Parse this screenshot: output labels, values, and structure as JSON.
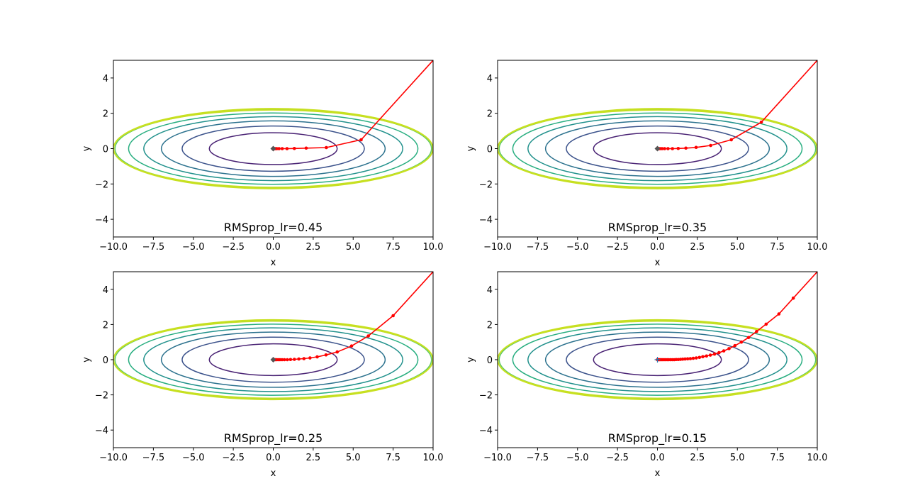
{
  "chart_data": [
    {
      "type": "line",
      "title": "RMSprop_lr=0.45",
      "xlabel": "x",
      "ylabel": "y",
      "xlim": [
        -10,
        10
      ],
      "ylim": [
        -5,
        5
      ],
      "xticks": [
        "−10.0",
        "−7.5",
        "−5.0",
        "−2.5",
        "0.0",
        "2.5",
        "5.0",
        "7.5",
        "10.0"
      ],
      "yticks": [
        "−4",
        "−2",
        "0",
        "2",
        "4"
      ],
      "contour_semi_axes": [
        [
          4.0,
          0.9
        ],
        [
          5.7,
          1.28
        ],
        [
          7.0,
          1.57
        ],
        [
          8.1,
          1.81
        ],
        [
          9.05,
          2.02
        ],
        [
          9.9,
          2.21
        ],
        [
          10.0,
          2.25
        ]
      ],
      "contour_colors": [
        "#482173",
        "#3b528b",
        "#2c728e",
        "#21918c",
        "#28ae80",
        "#5ec962",
        "#addc30"
      ],
      "grid": false,
      "series": [
        {
          "color": "#ff0000",
          "x": [
            10.0,
            5.5,
            3.32,
            2.06,
            1.32,
            0.86,
            0.56,
            0.36,
            0.22,
            0.13,
            0.07,
            0.03,
            0.0
          ],
          "y": [
            5.0,
            0.5,
            0.06,
            0.03,
            0.01,
            0.0,
            0.0,
            0.0,
            0.0,
            0.0,
            0.0,
            0.0,
            0.0
          ]
        }
      ]
    },
    {
      "type": "line",
      "title": "RMSprop_lr=0.35",
      "xlabel": "x",
      "ylabel": "y",
      "xlim": [
        -10,
        10
      ],
      "ylim": [
        -5,
        5
      ],
      "xticks": [
        "−10.0",
        "−7.5",
        "−5.0",
        "−2.5",
        "0.0",
        "2.5",
        "5.0",
        "7.5",
        "10.0"
      ],
      "yticks": [
        "−4",
        "−2",
        "0",
        "2",
        "4"
      ],
      "contour_semi_axes": [
        [
          4.0,
          0.9
        ],
        [
          5.7,
          1.28
        ],
        [
          7.0,
          1.57
        ],
        [
          8.1,
          1.81
        ],
        [
          9.05,
          2.02
        ],
        [
          9.9,
          2.21
        ],
        [
          10.0,
          2.25
        ]
      ],
      "contour_colors": [
        "#482173",
        "#3b528b",
        "#2c728e",
        "#21918c",
        "#28ae80",
        "#5ec962",
        "#addc30"
      ],
      "grid": false,
      "series": [
        {
          "color": "#ff0000",
          "x": [
            10.0,
            6.5,
            4.62,
            3.33,
            2.42,
            1.78,
            1.3,
            0.94,
            0.66,
            0.45,
            0.29,
            0.17,
            0.09,
            0.04,
            0.0
          ],
          "y": [
            5.0,
            1.5,
            0.5,
            0.18,
            0.07,
            0.03,
            0.01,
            0.0,
            0.0,
            0.0,
            0.0,
            0.0,
            0.0,
            0.0,
            0.0
          ]
        }
      ]
    },
    {
      "type": "line",
      "title": "RMSprop_lr=0.25",
      "xlabel": "x",
      "ylabel": "y",
      "xlim": [
        -10,
        10
      ],
      "ylim": [
        -5,
        5
      ],
      "xticks": [
        "−10.0",
        "−7.5",
        "−5.0",
        "−2.5",
        "0.0",
        "2.5",
        "5.0",
        "7.5",
        "10.0"
      ],
      "yticks": [
        "−4",
        "−2",
        "0",
        "2",
        "4"
      ],
      "contour_semi_axes": [
        [
          4.0,
          0.9
        ],
        [
          5.7,
          1.28
        ],
        [
          7.0,
          1.57
        ],
        [
          8.1,
          1.81
        ],
        [
          9.05,
          2.02
        ],
        [
          9.9,
          2.21
        ],
        [
          10.0,
          2.25
        ]
      ],
      "contour_colors": [
        "#482173",
        "#3b528b",
        "#2c728e",
        "#21918c",
        "#28ae80",
        "#5ec962",
        "#addc30"
      ],
      "grid": false,
      "series": [
        {
          "color": "#ff0000",
          "x": [
            10.0,
            7.5,
            5.95,
            4.9,
            4.0,
            3.3,
            2.75,
            2.3,
            1.92,
            1.6,
            1.32,
            1.08,
            0.88,
            0.7,
            0.55,
            0.42,
            0.31,
            0.22,
            0.14,
            0.08,
            0.03,
            0.0
          ],
          "y": [
            5.0,
            2.5,
            1.35,
            0.78,
            0.44,
            0.27,
            0.16,
            0.1,
            0.06,
            0.04,
            0.02,
            0.01,
            0.0,
            0.0,
            0.0,
            0.0,
            0.0,
            0.0,
            0.0,
            0.0,
            0.0,
            0.0
          ]
        }
      ]
    },
    {
      "type": "line",
      "title": "RMSprop_lr=0.15",
      "xlabel": "x",
      "ylabel": "y",
      "xlim": [
        -10,
        10
      ],
      "ylim": [
        -5,
        5
      ],
      "xticks": [
        "−10.0",
        "−7.5",
        "−5.0",
        "−2.5",
        "0.0",
        "2.5",
        "5.0",
        "7.5",
        "10.0"
      ],
      "yticks": [
        "−4",
        "−2",
        "0",
        "2",
        "4"
      ],
      "contour_semi_axes": [
        [
          4.0,
          0.9
        ],
        [
          5.7,
          1.28
        ],
        [
          7.0,
          1.57
        ],
        [
          8.1,
          1.81
        ],
        [
          9.05,
          2.02
        ],
        [
          9.9,
          2.21
        ],
        [
          10.0,
          2.25
        ]
      ],
      "contour_colors": [
        "#482173",
        "#3b528b",
        "#2c728e",
        "#21918c",
        "#28ae80",
        "#5ec962",
        "#addc30"
      ],
      "grid": false,
      "series": [
        {
          "color": "#ff0000",
          "x": [
            10.0,
            8.5,
            7.6,
            6.8,
            6.2,
            5.7,
            5.25,
            4.85,
            4.48,
            4.15,
            3.85,
            3.57,
            3.31,
            3.07,
            2.84,
            2.63,
            2.43,
            2.24,
            2.06,
            1.89,
            1.73,
            1.58,
            1.44,
            1.3,
            1.17,
            1.05,
            0.93,
            0.82,
            0.71,
            0.61,
            0.51,
            0.42,
            0.33,
            0.25,
            0.17,
            0.1,
            0.04,
            0.0
          ],
          "y": [
            5.0,
            3.5,
            2.6,
            2.02,
            1.6,
            1.26,
            1.0,
            0.8,
            0.63,
            0.5,
            0.4,
            0.32,
            0.26,
            0.21,
            0.17,
            0.13,
            0.1,
            0.08,
            0.06,
            0.05,
            0.04,
            0.03,
            0.02,
            0.01,
            0.01,
            0.0,
            0.0,
            0.0,
            0.0,
            0.0,
            0.0,
            0.0,
            0.0,
            0.0,
            0.0,
            0.0,
            0.0,
            0.0
          ]
        }
      ]
    }
  ]
}
